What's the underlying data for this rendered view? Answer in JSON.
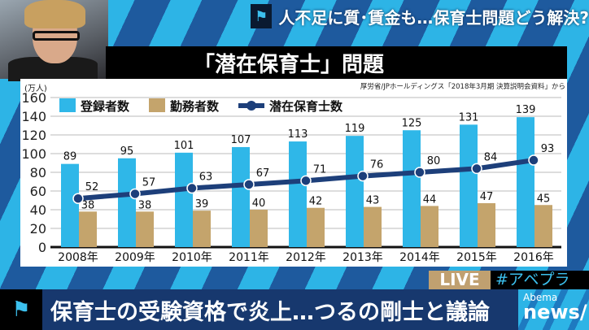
{
  "header": {
    "title": "人不足に質･賃金も…保育士問題どう解決?",
    "flag_icon": "flag-icon"
  },
  "chart_title": "「潜在保育士」問題",
  "source": "厚労省/JPホールディングス「2018年3月期 決算説明会資料」から",
  "live_badge": "LIVE",
  "hashtag": "#アベプラ",
  "ticker": "保育士の受験資格で炎上…つるの剛士と議論",
  "logo": {
    "line1": "Abema",
    "line2": "news/"
  },
  "chart_data": {
    "type": "bar",
    "title": "「潜在保育士」問題",
    "ylabel": "(万人)",
    "ylim": [
      0,
      160
    ],
    "yticks": [
      0,
      20,
      40,
      60,
      80,
      100,
      120,
      140,
      160
    ],
    "grid": true,
    "legend_placement": "top",
    "categories": [
      "2008年",
      "2009年",
      "2010年",
      "2011年",
      "2012年",
      "2013年",
      "2014年",
      "2015年",
      "2016年"
    ],
    "series": [
      {
        "name": "登録者数",
        "kind": "bar",
        "color": "#2fb7e8",
        "values": [
          89,
          95,
          101,
          107,
          113,
          119,
          125,
          131,
          139
        ]
      },
      {
        "name": "勤務者数",
        "kind": "bar",
        "color": "#c4a46c",
        "values": [
          38,
          38,
          39,
          40,
          42,
          43,
          44,
          47,
          45
        ]
      },
      {
        "name": "潜在保育士数",
        "kind": "line",
        "color": "#1d3f7a",
        "values": [
          52,
          57,
          63,
          67,
          71,
          76,
          80,
          84,
          93
        ]
      }
    ]
  }
}
